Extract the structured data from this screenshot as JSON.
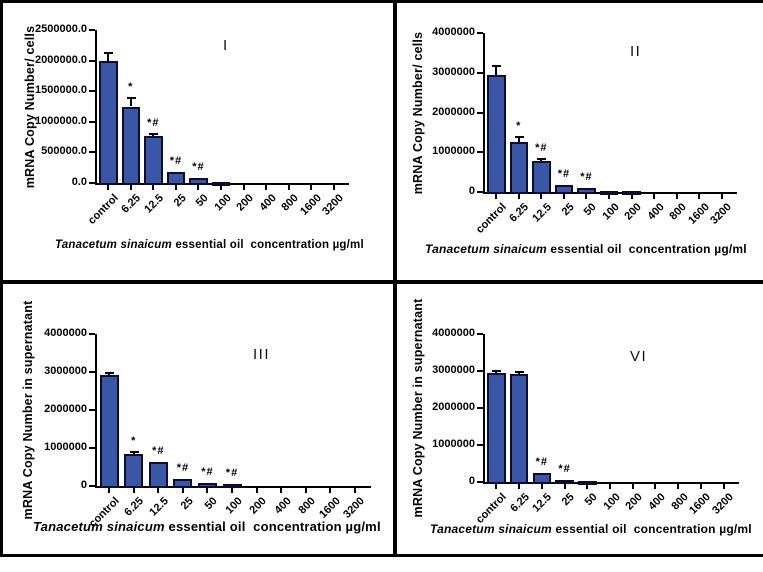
{
  "figure": {
    "background_color": "#ffffff",
    "frame_color": "#000000",
    "bar_fill_color": "#3A57A7",
    "bar_border_color": "#0C0C2E",
    "error_bar_color": "#000000"
  },
  "chart_data": [
    {
      "type": "bar",
      "panel": "I",
      "ylabel": "mRNA Copy Number/ cells",
      "xlabel": "Tanacetum sinaicum essential oil  concentration µg/ml",
      "xlabel_italic": "Tanacetum sinaicum",
      "xlabel_rest": " essential oil  concentration µg/ml",
      "ylim": [
        0,
        2500000
      ],
      "ytick_labels": [
        "0.0",
        "500000.0",
        "1000000.0",
        "1500000.0",
        "2000000.0",
        "2500000.0"
      ],
      "grid": false,
      "categories": [
        "control",
        "6.25",
        "12.5",
        "25",
        "50",
        "100",
        "200",
        "400",
        "800",
        "1600",
        "3200"
      ],
      "values": [
        2000000,
        1250000,
        760000,
        185000,
        85000,
        20000,
        8000,
        4000,
        3000,
        3000,
        3000
      ],
      "errors": [
        130000,
        140000,
        40000,
        22000,
        15000,
        0,
        0,
        0,
        0,
        0,
        0
      ],
      "sig": [
        "",
        "*",
        "*#",
        "*#",
        "*#",
        "",
        "",
        "",
        "",
        "",
        ""
      ]
    },
    {
      "type": "bar",
      "panel": "II",
      "ylabel": "mRNA Copy Number/ cells",
      "xlabel": "Tanacetum sinaicum essential oil  concentration µg/ml",
      "xlabel_italic": "Tanacetum sinaicum",
      "xlabel_rest": " essential oil  concentration µg/ml",
      "ylim": [
        0,
        4000000
      ],
      "ytick_labels": [
        "0",
        "1000000",
        "2000000",
        "3000000",
        "4000000"
      ],
      "grid": false,
      "categories": [
        "control",
        "6.25",
        "12.5",
        "25",
        "50",
        "100",
        "200",
        "400",
        "800",
        "1600",
        "3200"
      ],
      "values": [
        2950000,
        1260000,
        770000,
        180000,
        90000,
        35000,
        28000,
        25000,
        6000,
        4000,
        4000
      ],
      "errors": [
        210000,
        130000,
        50000,
        25000,
        18000,
        0,
        0,
        0,
        0,
        0,
        0
      ],
      "sig": [
        "",
        "*",
        "*#",
        "*#",
        "*#",
        "",
        "",
        "",
        "",
        "",
        ""
      ]
    },
    {
      "type": "bar",
      "panel": "III",
      "ylabel": "mRNA Copy Number in supernatant",
      "xlabel": "Tanacetum sinaicum essential oil  concentration µg/ml",
      "xlabel_italic": "Tanacetum sinaicum",
      "xlabel_rest": " essential oil  concentration µg/ml",
      "ylim": [
        0,
        4000000
      ],
      "ytick_labels": [
        "0",
        "1000000",
        "2000000",
        "3000000",
        "4000000"
      ],
      "grid": false,
      "categories": [
        "control",
        "6.25",
        "12.5",
        "25",
        "50",
        "100",
        "200",
        "400",
        "800",
        "1600",
        "3200"
      ],
      "values": [
        2920000,
        850000,
        630000,
        183000,
        80000,
        52000,
        8000,
        4000,
        3000,
        3000,
        3000
      ],
      "errors": [
        60000,
        40000,
        35000,
        22000,
        12000,
        10000,
        0,
        0,
        0,
        0,
        0
      ],
      "sig": [
        "",
        "*",
        "*#",
        "*#",
        "*#",
        "*#",
        "",
        "",
        "",
        "",
        ""
      ]
    },
    {
      "type": "bar",
      "panel": "VI",
      "ylabel": "mRNA Copy Number in supernatant",
      "xlabel": "Tanacetum sinaicum essential oil  concentration µg/ml",
      "xlabel_italic": "Tanacetum sinaicum",
      "xlabel_rest": " essential oil  concentration µg/ml",
      "ylim": [
        0,
        4000000
      ],
      "ytick_labels": [
        "0",
        "1000000",
        "2000000",
        "3000000",
        "4000000"
      ],
      "grid": false,
      "categories": [
        "control",
        "6.25",
        "12.5",
        "25",
        "50",
        "100",
        "200",
        "400",
        "800",
        "1600",
        "3200"
      ],
      "values": [
        2950000,
        2930000,
        240000,
        42000,
        30000,
        6000,
        4000,
        3000,
        3000,
        3000,
        3000
      ],
      "errors": [
        60000,
        50000,
        28000,
        10000,
        0,
        0,
        0,
        0,
        0,
        0,
        0
      ],
      "sig": [
        "",
        "",
        "*#",
        "*#",
        "",
        "",
        "",
        "",
        "",
        "",
        ""
      ]
    }
  ]
}
